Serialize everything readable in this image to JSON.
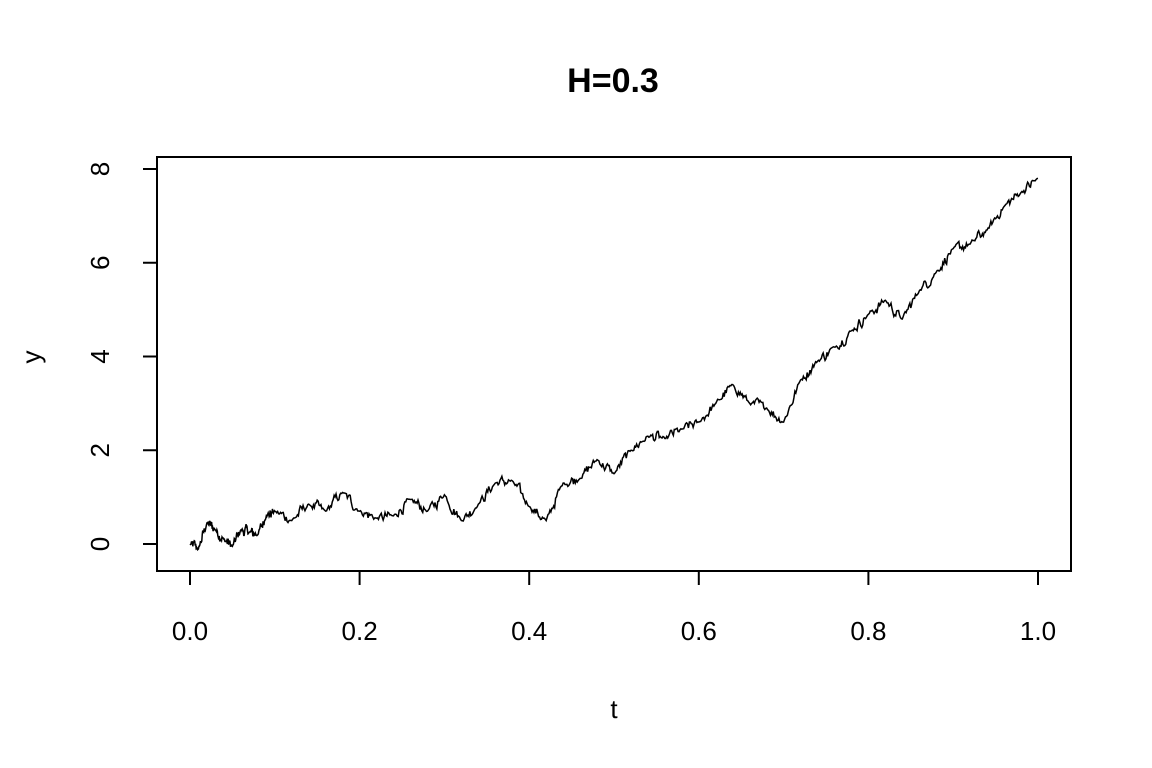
{
  "chart_data": {
    "type": "line",
    "title": "H=0.3",
    "xlabel": "t",
    "ylabel": "y",
    "xlim": [
      0.0,
      1.0
    ],
    "ylim": [
      -0.6,
      8.25
    ],
    "xticks": [
      "0.0",
      "0.2",
      "0.4",
      "0.6",
      "0.8",
      "1.0"
    ],
    "yticks": [
      "0",
      "2",
      "4",
      "6",
      "8"
    ],
    "grid": false,
    "legend": "none",
    "line_color": "#000000",
    "series": [
      {
        "x": [
          0.0,
          0.01,
          0.02,
          0.03,
          0.04,
          0.05,
          0.06,
          0.07,
          0.08,
          0.09,
          0.1,
          0.12,
          0.14,
          0.16,
          0.18,
          0.2,
          0.22,
          0.24,
          0.26,
          0.28,
          0.3,
          0.32,
          0.34,
          0.36,
          0.38,
          0.4,
          0.42,
          0.44,
          0.46,
          0.48,
          0.5,
          0.52,
          0.54,
          0.56,
          0.58,
          0.6,
          0.62,
          0.64,
          0.66,
          0.68,
          0.7,
          0.72,
          0.74,
          0.76,
          0.78,
          0.8,
          0.82,
          0.84,
          0.86,
          0.88,
          0.9,
          0.92,
          0.94,
          0.96,
          0.98,
          1.0
        ],
        "y": [
          0.0,
          -0.1,
          0.45,
          0.3,
          0.1,
          -0.05,
          0.3,
          0.25,
          0.2,
          0.6,
          0.7,
          0.5,
          0.85,
          0.7,
          1.1,
          0.7,
          0.55,
          0.6,
          0.95,
          0.7,
          1.05,
          0.5,
          0.85,
          1.3,
          1.35,
          0.8,
          0.5,
          1.3,
          1.4,
          1.8,
          1.5,
          2.0,
          2.3,
          2.25,
          2.45,
          2.6,
          3.0,
          3.4,
          3.0,
          2.9,
          2.6,
          3.5,
          3.9,
          4.2,
          4.55,
          4.9,
          5.2,
          4.8,
          5.4,
          5.8,
          6.3,
          6.4,
          6.7,
          7.2,
          7.5,
          7.8
        ]
      }
    ]
  }
}
